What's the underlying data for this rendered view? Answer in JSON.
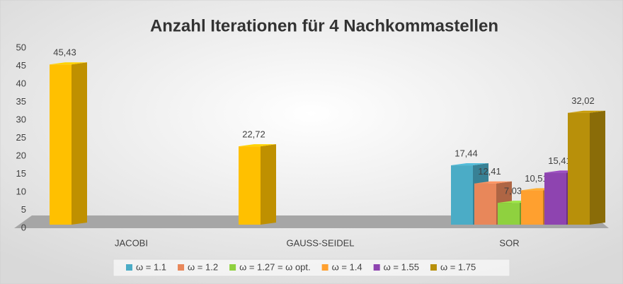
{
  "chart_data": {
    "type": "bar3d",
    "title": "Anzahl Iterationen für 4 Nachkommastellen",
    "categories": [
      "JACOBI",
      "GAUSS-SEIDEL",
      "SOR"
    ],
    "ylim": [
      0,
      50
    ],
    "yticks": [
      0,
      5,
      10,
      15,
      20,
      25,
      30,
      35,
      40,
      45,
      50
    ],
    "legend": "bottom",
    "series": [
      {
        "color": "#ffc000",
        "values": [
          45.43,
          22.72,
          null
        ],
        "value_labels": [
          "45,43",
          "22,72",
          null
        ]
      },
      {
        "name": "ω = 1.1",
        "color": "#4bacc6",
        "values": [
          null,
          null,
          17.44
        ],
        "value_labels": [
          null,
          null,
          "17,44"
        ]
      },
      {
        "name": "ω = 1.2",
        "color": "#e8875a",
        "values": [
          null,
          null,
          12.41
        ],
        "value_labels": [
          null,
          null,
          "12,41"
        ]
      },
      {
        "name": "ω = 1.27 = ω opt.",
        "color": "#8fd13f",
        "values": [
          null,
          null,
          7.03
        ],
        "value_labels": [
          null,
          null,
          "7,03"
        ]
      },
      {
        "name": "ω = 1.4",
        "color": "#ffa02f",
        "values": [
          null,
          null,
          10.51
        ],
        "value_labels": [
          null,
          null,
          "10,51"
        ]
      },
      {
        "name": "ω = 1.55",
        "color": "#8e44b0",
        "values": [
          null,
          null,
          15.41
        ],
        "value_labels": [
          null,
          null,
          "15,41"
        ]
      },
      {
        "name": "ω = 1.75",
        "color": "#b8900a",
        "values": [
          null,
          null,
          32.02
        ],
        "value_labels": [
          null,
          null,
          "32,02"
        ]
      }
    ]
  }
}
